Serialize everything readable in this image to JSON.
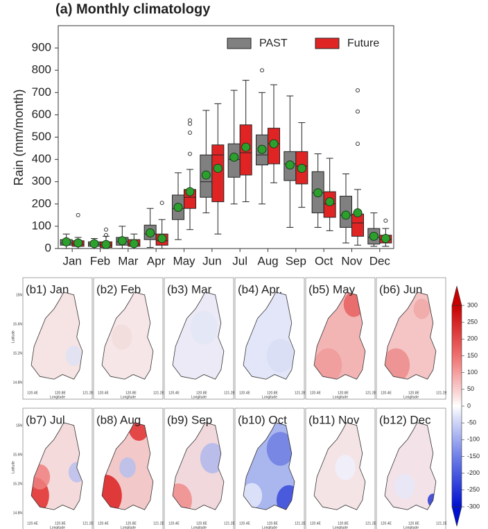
{
  "chart_data": [
    {
      "type": "box",
      "title": "(a) Monthly climatology",
      "y_label": "Rain (mm/month)",
      "categories": [
        "Jan",
        "Feb",
        "Mar",
        "Apr",
        "May",
        "Jun",
        "Jul",
        "Aug",
        "Sep",
        "Oct",
        "Nov",
        "Dec"
      ],
      "ylim": [
        0,
        1000
      ],
      "yticks": [
        0,
        100,
        200,
        300,
        400,
        500,
        600,
        700,
        800,
        900
      ],
      "series": [
        {
          "name": "PAST",
          "color": "#808080",
          "min": [
            0,
            0,
            0,
            5,
            40,
            160,
            200,
            200,
            95,
            95,
            25,
            10
          ],
          "q1": [
            15,
            10,
            15,
            40,
            130,
            230,
            320,
            375,
            305,
            160,
            95,
            20
          ],
          "median": [
            25,
            20,
            30,
            65,
            180,
            300,
            400,
            420,
            380,
            250,
            150,
            50
          ],
          "q3": [
            40,
            30,
            50,
            105,
            240,
            420,
            470,
            510,
            435,
            345,
            235,
            90
          ],
          "max": [
            65,
            45,
            100,
            180,
            340,
            620,
            710,
            700,
            685,
            425,
            335,
            160
          ],
          "mean": [
            30,
            22,
            35,
            70,
            185,
            330,
            410,
            445,
            375,
            250,
            150,
            55
          ],
          "outliers": [
            [],
            [],
            [],
            [],
            [],
            [],
            [],
            [
              800
            ],
            [],
            [],
            [],
            []
          ]
        },
        {
          "name": "Future",
          "color": "#e02424",
          "min": [
            0,
            0,
            0,
            0,
            85,
            65,
            210,
            295,
            185,
            80,
            15,
            10
          ],
          "q1": [
            10,
            5,
            10,
            15,
            180,
            210,
            330,
            380,
            290,
            140,
            55,
            25
          ],
          "median": [
            20,
            15,
            20,
            35,
            230,
            420,
            430,
            470,
            370,
            200,
            115,
            40
          ],
          "q3": [
            35,
            30,
            40,
            65,
            265,
            465,
            555,
            540,
            435,
            255,
            155,
            60
          ],
          "max": [
            50,
            55,
            65,
            130,
            355,
            650,
            755,
            735,
            565,
            405,
            265,
            90
          ],
          "mean": [
            25,
            18,
            22,
            45,
            255,
            360,
            455,
            470,
            360,
            210,
            160,
            45
          ],
          "outliers": [
            [
              150
            ],
            [
              60,
              85
            ],
            [],
            [
              205
            ],
            [
              425,
              520,
              560,
              575
            ],
            [],
            [],
            [],
            [],
            [],
            [
              470,
              615,
              710
            ],
            [
              125
            ]
          ]
        }
      ],
      "legend": "upper right"
    }
  ],
  "maps": {
    "panels": [
      "(b1) Jan",
      "(b2) Feb",
      "(b3) Mar",
      "(b4) Apr.",
      "(b5) May",
      "(b6) Jun",
      "(b7) Jul",
      "(b8) Aug",
      "(b9) Sep",
      "(b10) Oct",
      "(b11) Nov",
      "(b12) Dec"
    ],
    "lat_label": "Latitude",
    "lon_label": "Longitude",
    "lat_ticks": [
      "15N",
      "15.6N",
      "15.2N",
      "14.8N"
    ],
    "lon_ticks": [
      "120.4E",
      "120.8E",
      "121.2E"
    ],
    "colorbar": {
      "range": [
        -300,
        300
      ],
      "ticks": [
        300,
        250,
        200,
        150,
        100,
        50,
        0,
        -50,
        -100,
        -150,
        -200,
        -250,
        -300
      ]
    }
  }
}
